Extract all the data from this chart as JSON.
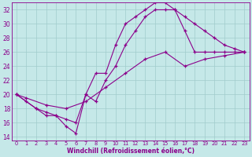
{
  "xlabel": "Windchill (Refroidissement éolien,°C)",
  "xlim": [
    -0.5,
    23.5
  ],
  "ylim": [
    13.5,
    33
  ],
  "xticks": [
    0,
    1,
    2,
    3,
    4,
    5,
    6,
    7,
    8,
    9,
    10,
    11,
    12,
    13,
    14,
    15,
    16,
    17,
    18,
    19,
    20,
    21,
    22,
    23
  ],
  "yticks": [
    14,
    16,
    18,
    20,
    22,
    24,
    26,
    28,
    30,
    32
  ],
  "bg_color": "#c5e8e8",
  "line_color": "#8b008b",
  "grid_color": "#a0cccc",
  "line1_x": [
    0,
    1,
    2,
    3,
    4,
    5,
    6,
    7,
    8,
    9,
    10,
    11,
    12,
    13,
    14,
    15,
    16,
    17,
    18,
    19,
    20,
    21,
    22,
    23
  ],
  "line1_y": [
    20,
    19,
    18,
    17,
    17,
    15.5,
    14.5,
    20,
    23,
    23,
    27,
    30,
    31,
    32,
    33,
    33,
    32,
    29,
    26,
    26,
    26,
    26,
    26,
    26
  ],
  "line2_x": [
    0,
    2,
    3,
    4,
    5,
    6,
    7,
    8,
    9,
    10,
    11,
    12,
    13,
    14,
    15,
    16,
    17,
    18,
    19,
    20,
    21,
    22,
    23
  ],
  "line2_y": [
    20,
    18,
    17.5,
    17,
    16.5,
    16,
    20,
    19,
    22,
    24,
    27,
    29,
    31,
    32,
    32,
    32,
    31,
    30,
    29,
    28,
    27,
    26.5,
    26
  ],
  "line3_x": [
    0,
    1,
    3,
    5,
    7,
    9,
    11,
    13,
    15,
    17,
    19,
    21,
    23
  ],
  "line3_y": [
    20,
    19.5,
    18.5,
    18,
    19,
    21,
    23,
    25,
    26,
    24,
    25,
    25.5,
    26
  ]
}
